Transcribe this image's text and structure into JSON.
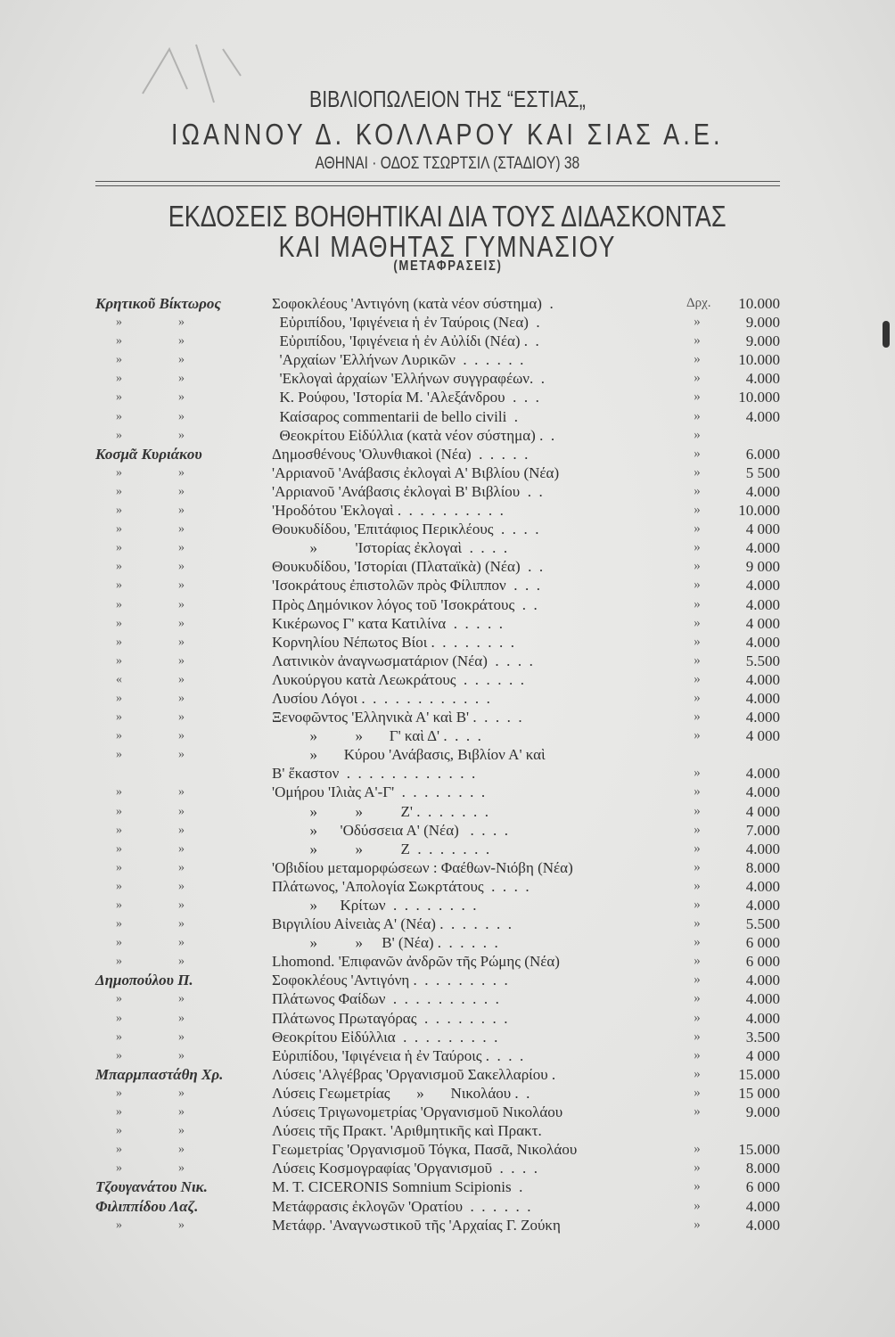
{
  "header": {
    "line1": "ΒΙΒΛΙΟΠΩΛΕΙΟΝ ΤΗΣ “ΕΣΤΙΑΣ„",
    "line2": "ΙΩΑΝΝΟΥ Δ. ΚΟΛΛΑΡΟΥ ΚΑΙ ΣΙΑΣ Α.Ε.",
    "address": "ΑΘΗΝΑΙ · ΟΔΟΣ ΤΣΩΡΤΣΙΛ (ΣΤΑΔΙΟΥ) 38",
    "title1": "ΕΚΔΟΣΕΙΣ ΒΟΗΘΗΤΙΚΑΙ ΔΙΑ ΤΟΥΣ ΔΙΔΑΣΚΟΝΤΑΣ",
    "title2": "ΚΑΙ ΜΑΘΗΤΑΣ ΓΥΜΝΑΣΙΟΥ",
    "subtitle": "(ΜΕΤΑΦΡΑΣΕΙΣ)"
  },
  "rows": [
    {
      "author": "Κρητικοῦ Βίκτωρος",
      "title": "Σοφοκλέους 'Αντιγόνη (κατὰ νέον σύστημα)  .",
      "mark": "Δρχ.",
      "price": "10.000"
    },
    {
      "ditto": [
        "»",
        "»"
      ],
      "title": "  Εὐριπίδου, 'Ιφιγένεια ἡ ἐν Ταύροις (Νεα)  .",
      "mark": "»",
      "price": "9.000"
    },
    {
      "ditto": [
        "»",
        "»"
      ],
      "title": "  Εὐριπίδου, 'Ιφιγένεια ἡ ἐν Αὐλίδι (Νέα) .  .",
      "mark": "»",
      "price": "9.000"
    },
    {
      "ditto": [
        "»",
        "»"
      ],
      "title": "  'Αρχαίων 'Ελλήνων Λυρικῶν  .  .  .  .  .  .",
      "mark": "»",
      "price": "10.000"
    },
    {
      "ditto": [
        "»",
        "»"
      ],
      "title": "  'Εκλογαὶ ἀρχαίων 'Ελλήνων συγγραφέων.  .",
      "mark": "»",
      "price": "4.000"
    },
    {
      "ditto": [
        "»",
        "»"
      ],
      "title": "  Κ. Ρούφου, 'Ιστορία Μ. 'Αλεξάνδρου  .  .  .",
      "mark": "»",
      "price": "10.000"
    },
    {
      "ditto": [
        "»",
        "»"
      ],
      "title": "  Καίσαρος commentarii de bello civili  .",
      "mark": "»",
      "price": "4.000"
    },
    {
      "ditto": [
        "»",
        "»"
      ],
      "title": "  Θεοκρίτου Εἰδύλλια (κατὰ νέον σύστημα) .  .",
      "mark": "»",
      "price": ""
    },
    {
      "author": "Κοσμᾶ Κυριάκου",
      "title": "Δημοσθένους 'Ολυνθιακοὶ (Νέα)  .  .  .  .  .",
      "mark": "»",
      "price": "6.000"
    },
    {
      "ditto": [
        "»",
        "»"
      ],
      "title": "'Αρριανοῦ 'Ανάβασις ἐκλογαὶ Α' Βιβλίου (Νέα)",
      "mark": "»",
      "price": "5 500"
    },
    {
      "ditto": [
        "»",
        "»"
      ],
      "title": "'Αρριανοῦ 'Ανάβασις ἐκλογαὶ Β' Βιβλίου  .  .",
      "mark": "»",
      "price": "4.000"
    },
    {
      "ditto": [
        "»",
        "»"
      ],
      "title": "'Ηροδότου 'Εκλογαὶ .  .  .  .  .  .  .  .  .  .",
      "mark": "»",
      "price": "10.000"
    },
    {
      "ditto": [
        "»",
        "»"
      ],
      "title": "Θουκυδίδου, 'Επιτάφιος Περικλέους  .  .  .  .",
      "mark": "»",
      "price": "4 000"
    },
    {
      "ditto": [
        "»",
        "»"
      ],
      "title": "          »          'Ιστορίας ἐκλογαὶ  .  .  .  .",
      "mark": "»",
      "price": "4.000"
    },
    {
      "ditto": [
        "»",
        "»"
      ],
      "title": "Θουκυδίδου, 'Ιστορίαι (Πλαταϊκὰ) (Νέα)  .  .",
      "mark": "»",
      "price": "9 000"
    },
    {
      "ditto": [
        "»",
        "»"
      ],
      "title": "'Ισοκράτους ἐπιστολῶν πρὸς Φίλιππον  .  .  .",
      "mark": "»",
      "price": "4.000"
    },
    {
      "ditto": [
        "»",
        "»"
      ],
      "title": "Πρὸς Δημόνικον λόγος τοῦ 'Ισοκράτους  .  .",
      "mark": "»",
      "price": "4.000"
    },
    {
      "ditto": [
        "»",
        "»"
      ],
      "title": "Κικέρωνος Γ' κατα Κατιλίνα  .  .  .  .  .",
      "mark": "»",
      "price": "4 000"
    },
    {
      "ditto": [
        "»",
        "»"
      ],
      "title": "Κορνηλίου Νέπωτος Βίοι .  .  .  .  .  .  .  .",
      "mark": "»",
      "price": "4.000"
    },
    {
      "ditto": [
        "»",
        "»"
      ],
      "title": "Λατινικὸν ἀναγνωσματάριον (Νέα)  .  .  .  .",
      "mark": "»",
      "price": "5.500"
    },
    {
      "ditto": [
        "«",
        "»"
      ],
      "title": "Λυκούργου κατὰ Λεωκράτους  .  .  .  .  .  .",
      "mark": "»",
      "price": "4.000"
    },
    {
      "ditto": [
        "»",
        "»"
      ],
      "title": "Λυσίου Λόγοι .  .  .  .  .  .  .  .  .  .  .  .",
      "mark": "»",
      "price": "4.000"
    },
    {
      "ditto": [
        "»",
        "»"
      ],
      "title": "Ξενοφῶντος 'Ελληνικὰ Α' καὶ Β' .  .  .  .  .",
      "mark": "»",
      "price": "4.000"
    },
    {
      "ditto": [
        "»",
        "»"
      ],
      "title": "          »          »       Γ' καὶ Δ' .  .  .  .",
      "mark": "»",
      "price": "4 000"
    },
    {
      "ditto": [
        "»",
        "»"
      ],
      "title": "          »       Κύρου 'Ανάβασις, Βιβλίον Α' καὶ",
      "mark": "",
      "price": ""
    },
    {
      "title": "Β' ἕκαστον  .  .  .  .  .  .  .  .  .  .  .  .",
      "mark": "»",
      "price": "4.000"
    },
    {
      "ditto": [
        "»",
        "»"
      ],
      "title": "'Ομήρου 'Ιλιὰς Α'-Γ'  .  .  .  .  .  .  .  .",
      "mark": "»",
      "price": "4.000"
    },
    {
      "ditto": [
        "»",
        "»"
      ],
      "title": "          »          »          Ζ' .  .  .  .  .  .  .",
      "mark": "»",
      "price": "4 000"
    },
    {
      "ditto": [
        "»",
        "»"
      ],
      "title": "          »      'Οδύσσεια Α' (Νέα)   .  .  .  .",
      "mark": "»",
      "price": "7.000"
    },
    {
      "ditto": [
        "»",
        "»"
      ],
      "title": "          »          »          Ζ  .  .  .  .  .  .  .",
      "mark": "»",
      "price": "4.000"
    },
    {
      "ditto": [
        "»",
        "»"
      ],
      "title": "'Οβιδίου μεταμορφώσεων : Φαέθων-Νιόβη (Νέα)",
      "mark": "»",
      "price": "8.000"
    },
    {
      "ditto": [
        "»",
        "»"
      ],
      "title": "Πλάτωνος, 'Απολογία Σωκρτάτους  .  .  .  .",
      "mark": "»",
      "price": "4.000"
    },
    {
      "ditto": [
        "»",
        "»"
      ],
      "title": "          »      Κρίτων  .  .  .  .  .  .  .  .",
      "mark": "»",
      "price": "4.000"
    },
    {
      "ditto": [
        "»",
        "»"
      ],
      "title": "Βιργιλίου Αἰνειὰς Α' (Νέα) .  .  .  .  .  .  .",
      "mark": "»",
      "price": "5.500"
    },
    {
      "ditto": [
        "»",
        "»"
      ],
      "title": "          »          »     Β' (Νέα) .  .  .  .  .  .",
      "mark": "»",
      "price": "6 000"
    },
    {
      "ditto": [
        "»",
        "»"
      ],
      "title": "Lhomond. 'Επιφανῶν ἀνδρῶν τῆς Ρώμης (Νέα)",
      "mark": "»",
      "price": "6 000"
    },
    {
      "author": "Δημοπούλου Π.",
      "title": "Σοφοκλέους 'Αντιγόνη .  .  .  .  .  .  .  .  .",
      "mark": "»",
      "price": "4.000"
    },
    {
      "ditto": [
        "»",
        "»"
      ],
      "title": "Πλάτωνος Φαίδων  .  .  .  .  .  .  .  .  .  .",
      "mark": "»",
      "price": "4.000"
    },
    {
      "ditto": [
        "»",
        "»"
      ],
      "title": "Πλάτωνος Πρωταγόρας  .  .  .  .  .  .  .  .",
      "mark": "»",
      "price": "4.000"
    },
    {
      "ditto": [
        "»",
        "»"
      ],
      "title": "Θεοκρίτου Εἰδύλλια  .  .  .  .  .  .  .  .  .",
      "mark": "»",
      "price": "3.500"
    },
    {
      "ditto": [
        "»",
        "»"
      ],
      "title": "Εὐριπίδου, 'Ιφιγένεια ἡ ἐν Ταύροις .  .  .  .",
      "mark": "»",
      "price": "4 000"
    },
    {
      "author": "Μπαρμπαστάθη Χρ.",
      "title": "Λύσεις 'Αλγέβρας 'Οργανισμοῦ Σακελλαρίου .",
      "mark": "»",
      "price": "15.000"
    },
    {
      "ditto": [
        "»",
        "»"
      ],
      "title": "Λύσεις Γεωμετρίας       »       Νικολάου .  .",
      "mark": "»",
      "price": "15 000"
    },
    {
      "ditto": [
        "»",
        "»"
      ],
      "title": "Λύσεις Τριγωνομετρίας 'Οργανισμοῦ Νικολάου",
      "mark": "»",
      "price": "9.000"
    },
    {
      "ditto": [
        "»",
        "»"
      ],
      "title": "Λύσεις τῆς Πρακτ. 'Αριθμητικῆς καὶ Πρακτ.",
      "mark": "",
      "price": ""
    },
    {
      "ditto": [
        "»",
        "»"
      ],
      "title": "Γεωμετρίας 'Οργανισμοῦ Τόγκα, Πασᾶ, Νικολάου",
      "mark": "»",
      "price": "15.000"
    },
    {
      "ditto": [
        "»",
        "»"
      ],
      "title": "Λύσεις Κοσμογραφίας 'Οργανισμοῦ  .  .  .  .",
      "mark": "»",
      "price": "8.000"
    },
    {
      "author": "Τζουγανάτου Νικ.",
      "title": "M. T. CICERONIS Somnium Scipionis  .",
      "mark": "»",
      "price": "6 000"
    },
    {
      "author": "Φιλιππίδου Λαζ.",
      "title": "Μετάφρασις ἐκλογῶν 'Ορατίου  .  .  .  .  .  .",
      "mark": "»",
      "price": "4.000"
    },
    {
      "ditto": [
        "»",
        "»"
      ],
      "title": "Μετάφρ. 'Αναγνωστικοῦ τῆς 'Αρχαίας Γ. Ζούκη",
      "mark": "»",
      "price": "4.000"
    }
  ]
}
